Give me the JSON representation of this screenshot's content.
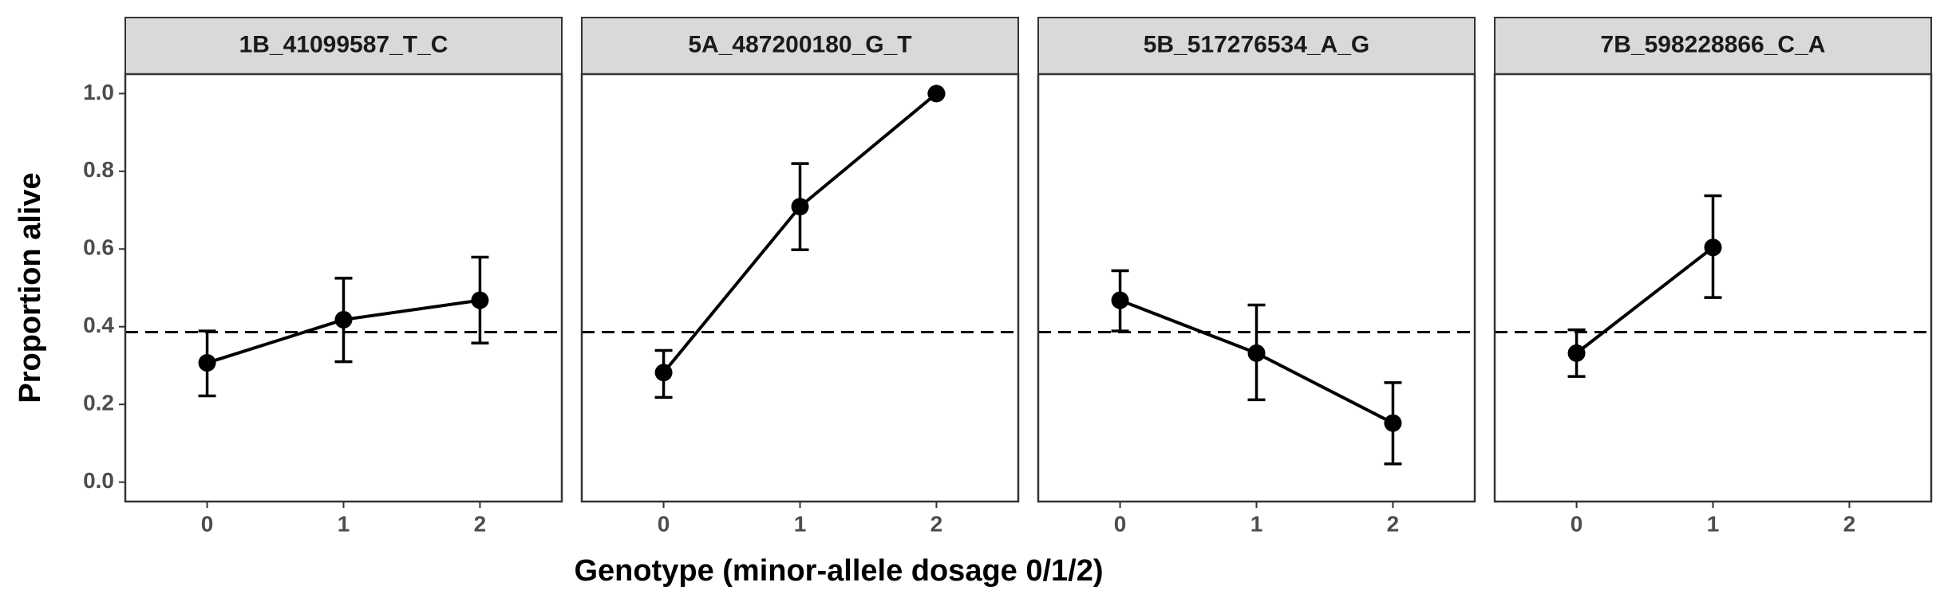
{
  "chart_data": {
    "type": "line",
    "xlabel": "Genotype (minor-allele dosage 0/1/2)",
    "ylabel": "Proportion alive",
    "xlim": [
      -0.6,
      2.6
    ],
    "xticks": [
      0,
      1,
      2
    ],
    "ylim": [
      -0.05,
      1.05
    ],
    "yticks": [
      0.0,
      0.2,
      0.4,
      0.6,
      0.8,
      1.0
    ],
    "reference_line": 0.386,
    "color": "#000000",
    "panels": [
      {
        "title": "1B_41099587_T_C",
        "x": [
          0,
          1,
          2
        ],
        "values": [
          0.307,
          0.418,
          0.468
        ],
        "ci_low": [
          0.222,
          0.31,
          0.358
        ],
        "ci_high": [
          0.389,
          0.525,
          0.579
        ]
      },
      {
        "title": "5A_487200180_G_T",
        "x": [
          0,
          1,
          2
        ],
        "values": [
          0.282,
          0.709,
          1.0
        ],
        "ci_low": [
          0.218,
          0.598,
          1.0
        ],
        "ci_high": [
          0.339,
          0.82,
          1.0
        ]
      },
      {
        "title": "5B_517276534_A_G",
        "x": [
          0,
          1,
          2
        ],
        "values": [
          0.468,
          0.332,
          0.152
        ],
        "ci_low": [
          0.389,
          0.212,
          0.047
        ],
        "ci_high": [
          0.544,
          0.456,
          0.256
        ]
      },
      {
        "title": "7B_598228866_C_A",
        "x": [
          0,
          1
        ],
        "values": [
          0.332,
          0.604
        ],
        "ci_low": [
          0.272,
          0.475
        ],
        "ci_high": [
          0.392,
          0.737
        ]
      }
    ]
  }
}
